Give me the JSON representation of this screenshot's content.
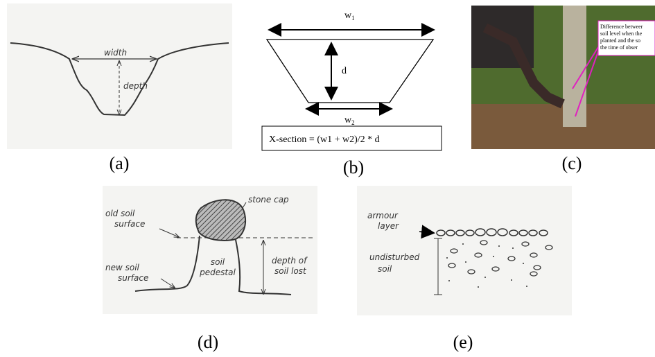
{
  "panels": {
    "a": {
      "caption": "(a)",
      "width_label": "width",
      "depth_label": "depth"
    },
    "b": {
      "caption": "(b)",
      "w1": {
        "base": "w",
        "sub": "1"
      },
      "d": "d",
      "w2": {
        "base": "w",
        "sub": "2"
      },
      "formula": "X-section = (w1 + w2)/2 * d"
    },
    "c": {
      "caption": "(c)",
      "annotation": [
        "Difference betweer",
        "soil level when the",
        "planted and the so",
        "the time of obser"
      ]
    },
    "d": {
      "caption": "(d)",
      "old_surface": [
        "old soil",
        "surface"
      ],
      "stone_cap": "stone cap",
      "new_surface": [
        "new soil",
        "surface"
      ],
      "pedestal": [
        "soil",
        "pedestal"
      ],
      "depth_lost": [
        "depth of",
        "soil lost"
      ]
    },
    "e": {
      "caption": "(e)",
      "armour": [
        "armour",
        "layer"
      ],
      "undisturbed": [
        "undisturbed",
        "soil"
      ]
    }
  }
}
